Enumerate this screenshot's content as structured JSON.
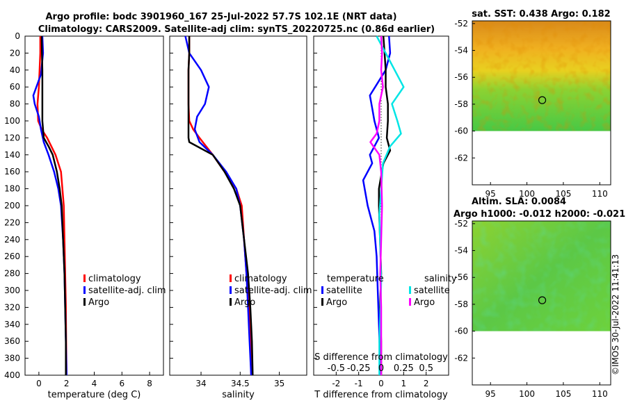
{
  "header": {
    "title_line1": "Argo profile: bodc 3901960_167 25-Jul-2022 57.7S 102.1E (NRT data)",
    "title_line2": "Climatology: CARS2009. Satellite-adj clim: synTS_20220725.nc (0.86d earlier)"
  },
  "colors": {
    "climatology": "#ff0000",
    "satellite": "#0000ff",
    "argo": "#000000",
    "sal_satellite": "#00e5e5",
    "sal_argo": "#ff00ff"
  },
  "chart_data": [
    {
      "id": "temperature",
      "type": "line",
      "xlabel": "temperature (deg C)",
      "ylabel": "",
      "xlim": [
        -1,
        9
      ],
      "ylim": [
        0,
        400
      ],
      "xticks": [
        0,
        2,
        4,
        6,
        8
      ],
      "xtick_labels": [
        "0",
        "2",
        "4",
        "6",
        "8"
      ],
      "yticks": [
        0,
        20,
        40,
        60,
        80,
        100,
        120,
        140,
        160,
        180,
        200,
        220,
        240,
        260,
        280,
        300,
        320,
        340,
        360,
        380,
        400
      ],
      "ytick_labels": [
        "0",
        "20",
        "40",
        "60",
        "80",
        "100",
        "120",
        "140",
        "160",
        "180",
        "200",
        "220",
        "240",
        "260",
        "280",
        "300",
        "320",
        "340",
        "360",
        "380",
        "400"
      ],
      "legend": [
        "climatology",
        "satellite-adj. clim",
        "Argo"
      ],
      "series": [
        {
          "name": "climatology",
          "x": [
            0.1,
            0.1,
            0.05,
            0.0,
            -0.1,
            -0.05,
            0.2,
            0.6,
            1.2,
            1.6,
            1.7,
            1.8,
            1.85,
            1.9,
            1.95,
            1.97,
            2.0
          ],
          "y": [
            0,
            20,
            40,
            60,
            80,
            100,
            110,
            120,
            140,
            160,
            180,
            200,
            240,
            280,
            320,
            360,
            400
          ]
        },
        {
          "name": "satellite-adj. clim",
          "x": [
            0.25,
            0.3,
            0.15,
            -0.4,
            -0.3,
            0.0,
            0.15,
            0.35,
            0.7,
            1.1,
            1.4,
            1.6,
            1.75,
            1.85,
            1.9,
            1.95,
            2.0
          ],
          "y": [
            0,
            20,
            45,
            70,
            80,
            95,
            110,
            125,
            140,
            160,
            180,
            200,
            240,
            280,
            320,
            360,
            400
          ]
        },
        {
          "name": "Argo",
          "x": [
            0.2,
            0.22,
            0.25,
            0.25,
            0.25,
            0.25,
            0.35,
            0.7,
            1.0,
            1.3,
            1.5,
            1.65,
            1.75,
            1.85,
            1.9,
            1.95,
            1.95
          ],
          "y": [
            0,
            20,
            40,
            60,
            80,
            100,
            120,
            130,
            140,
            160,
            180,
            200,
            240,
            280,
            320,
            360,
            400
          ]
        }
      ]
    },
    {
      "id": "salinity",
      "type": "line",
      "xlabel": "salinity",
      "ylabel": "",
      "xlim": [
        33.6,
        35.35
      ],
      "ylim": [
        0,
        400
      ],
      "xticks": [
        34,
        34.5,
        35
      ],
      "xtick_labels": [
        "34",
        "34.5",
        "35"
      ],
      "legend": [
        "climatology",
        "satellite-adj. clim",
        "Argo"
      ],
      "series": [
        {
          "name": "climatology",
          "x": [
            33.85,
            33.85,
            33.84,
            33.84,
            33.84,
            33.85,
            33.9,
            33.98,
            34.15,
            34.3,
            34.45,
            34.52,
            34.55,
            34.58,
            34.62,
            34.63,
            34.64
          ],
          "y": [
            0,
            20,
            40,
            60,
            80,
            100,
            110,
            120,
            140,
            160,
            180,
            200,
            240,
            280,
            320,
            360,
            400
          ]
        },
        {
          "name": "satellite-adj. clim",
          "x": [
            33.8,
            33.85,
            34.0,
            34.1,
            34.05,
            33.95,
            33.92,
            33.98,
            34.15,
            34.32,
            34.45,
            34.5,
            34.55,
            34.58,
            34.6,
            34.62,
            34.64
          ],
          "y": [
            0,
            20,
            40,
            60,
            80,
            95,
            110,
            125,
            140,
            160,
            180,
            200,
            240,
            280,
            320,
            360,
            400
          ]
        },
        {
          "name": "Argo",
          "x": [
            33.85,
            33.85,
            33.84,
            33.84,
            33.84,
            33.84,
            33.84,
            33.85,
            34.15,
            34.3,
            34.42,
            34.5,
            34.55,
            34.6,
            34.63,
            34.65,
            34.66
          ],
          "y": [
            0,
            20,
            40,
            60,
            80,
            100,
            120,
            125,
            140,
            160,
            180,
            200,
            240,
            280,
            320,
            360,
            400
          ]
        }
      ]
    },
    {
      "id": "difference",
      "type": "line",
      "xlabel": "T difference from climatology",
      "xlabel_top": "S difference from climatology",
      "xlim": [
        -3,
        3
      ],
      "ylim": [
        0,
        400
      ],
      "xticks": [
        -2,
        -1,
        0,
        1,
        2
      ],
      "xtick_labels": [
        "-2",
        "-1",
        "0",
        "1",
        "2"
      ],
      "sticks": [
        -0.5,
        -0.25,
        0,
        0.25,
        0.5
      ],
      "stick_labels": [
        "-0.5",
        "-0.25",
        "0",
        "0.25",
        "0.5"
      ],
      "legend_left_title": "temperature",
      "legend_right_title": "salinity",
      "legend_left": [
        "satellite",
        "Argo"
      ],
      "legend_right": [
        "satellite",
        "Argo"
      ],
      "series": [
        {
          "name": "T satellite",
          "x": [
            0.35,
            0.4,
            0.2,
            -0.5,
            -0.4,
            -0.3,
            -0.1,
            -0.5,
            -0.4,
            -0.8,
            -0.6,
            -0.3,
            -0.2,
            -0.15,
            -0.1,
            -0.05,
            -0.05
          ],
          "y": [
            0,
            20,
            40,
            70,
            85,
            100,
            120,
            140,
            150,
            170,
            200,
            230,
            260,
            300,
            340,
            380,
            400
          ]
        },
        {
          "name": "T Argo",
          "x": [
            0.1,
            0.15,
            0.2,
            0.2,
            0.3,
            0.3,
            0.25,
            0.4,
            0.1,
            -0.1,
            -0.1,
            -0.05,
            0.0,
            -0.05,
            0.0,
            0.0,
            0.0
          ],
          "y": [
            0,
            20,
            40,
            60,
            80,
            100,
            120,
            135,
            150,
            180,
            200,
            240,
            280,
            320,
            360,
            380,
            400
          ]
        },
        {
          "name": "S satellite",
          "x": [
            -0.05,
            0.05,
            0.15,
            0.25,
            0.12,
            0.18,
            0.22,
            0.1,
            0.02,
            0.0,
            -0.02,
            -0.01,
            0.0,
            -0.01,
            -0.02,
            -0.02,
            -0.02
          ],
          "y": [
            0,
            20,
            40,
            60,
            80,
            100,
            115,
            130,
            150,
            180,
            210,
            250,
            290,
            330,
            360,
            380,
            400
          ]
        },
        {
          "name": "S Argo",
          "x": [
            0.0,
            0.01,
            0.0,
            0.02,
            -0.02,
            -0.02,
            -0.05,
            -0.12,
            -0.02,
            0.0,
            0.01,
            0.0,
            -0.01,
            0.0,
            0.0,
            0.0,
            0.0
          ],
          "y": [
            0,
            20,
            40,
            60,
            80,
            100,
            115,
            125,
            140,
            160,
            200,
            240,
            280,
            320,
            360,
            380,
            400
          ]
        }
      ]
    },
    {
      "id": "sst_map",
      "type": "heatmap",
      "title": "sat. SST: 0.438 Argo: 0.182",
      "xlim": [
        92.5,
        111.5
      ],
      "ylim": [
        -64,
        -51.8
      ],
      "xticks": [
        95,
        100,
        105,
        110
      ],
      "xtick_labels": [
        "95",
        "100",
        "105",
        "110"
      ],
      "yticks": [
        -52,
        -54,
        -56,
        -58,
        -60,
        -62
      ],
      "ytick_labels": [
        "-52",
        "-54",
        "-56",
        "-58",
        "-60",
        "-62"
      ],
      "data_extent_lat": [
        -60,
        -51.8
      ],
      "marker": {
        "lon": 102.1,
        "lat": -57.7
      }
    },
    {
      "id": "sla_map",
      "type": "heatmap",
      "title_line1": "Altim. SLA: 0.0084",
      "title_line2": "Argo h1000: -0.012 h2000: -0.021",
      "xlim": [
        92.5,
        111.5
      ],
      "ylim": [
        -64,
        -51.8
      ],
      "xticks": [
        95,
        100,
        105,
        110
      ],
      "xtick_labels": [
        "95",
        "100",
        "105",
        "110"
      ],
      "yticks": [
        -52,
        -54,
        -56,
        -58,
        -60,
        -62
      ],
      "ytick_labels": [
        "-52",
        "-54",
        "-56",
        "-58",
        "-60",
        "-62"
      ],
      "data_extent_lat": [
        -60,
        -51.8
      ],
      "marker": {
        "lon": 102.1,
        "lat": -57.7
      }
    }
  ],
  "footer": {
    "credit": "©IMOS 30-Jul-2022 11:41:13"
  }
}
